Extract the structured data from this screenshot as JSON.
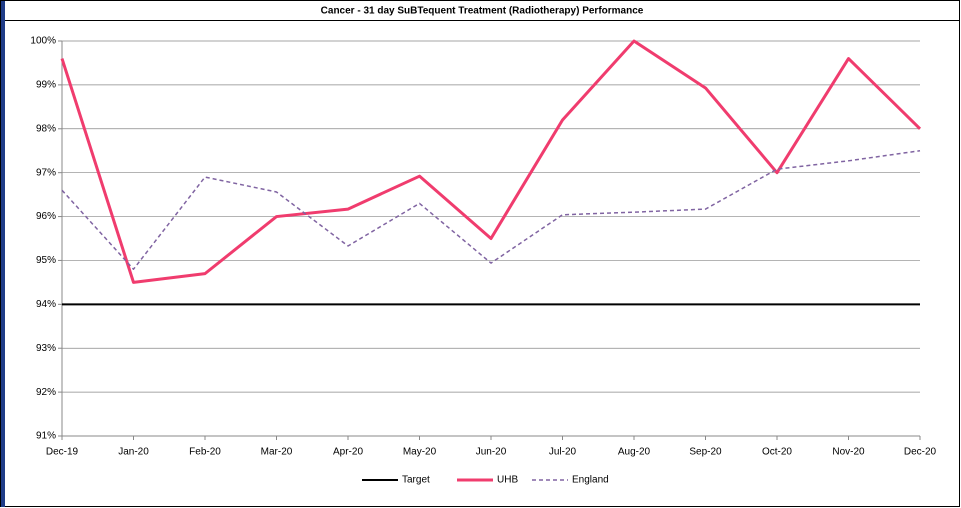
{
  "chart_data": {
    "type": "line",
    "title": "Cancer - 31 day SuBTequent Treatment (Radiotherapy) Performance",
    "categories": [
      "Dec-19",
      "Jan-20",
      "Feb-20",
      "Mar-20",
      "Apr-20",
      "May-20",
      "Jun-20",
      "Jul-20",
      "Aug-20",
      "Sep-20",
      "Oct-20",
      "Nov-20",
      "Dec-20"
    ],
    "series": [
      {
        "name": "Target",
        "color": "#000000",
        "values": [
          94,
          94,
          94,
          94,
          94,
          94,
          94,
          94,
          94,
          94,
          94,
          94,
          94
        ]
      },
      {
        "name": "UHB",
        "color": "#f03c6e",
        "values": [
          99.6,
          94.5,
          94.7,
          96.0,
          96.17,
          96.92,
          95.5,
          98.2,
          100,
          98.93,
          97.0,
          99.6,
          98.0
        ]
      },
      {
        "name": "England",
        "color": "#8064a2",
        "dashed": true,
        "values": [
          96.6,
          94.8,
          96.9,
          96.56,
          95.33,
          96.3,
          94.94,
          96.04,
          96.1,
          96.17,
          97.08,
          97.27,
          97.5
        ]
      }
    ],
    "ylim": [
      91,
      100
    ],
    "yticks": [
      {
        "value": 91,
        "label": "91%"
      },
      {
        "value": 92,
        "label": "92%"
      },
      {
        "value": 93,
        "label": "93%"
      },
      {
        "value": 94,
        "label": "94%"
      },
      {
        "value": 95,
        "label": "95%"
      },
      {
        "value": 96,
        "label": "96%"
      },
      {
        "value": 97,
        "label": "97%"
      },
      {
        "value": 98,
        "label": "98%"
      },
      {
        "value": 99,
        "label": "99%"
      },
      {
        "value": 100,
        "label": "100%"
      }
    ],
    "grid": true,
    "legend": "bottom"
  }
}
